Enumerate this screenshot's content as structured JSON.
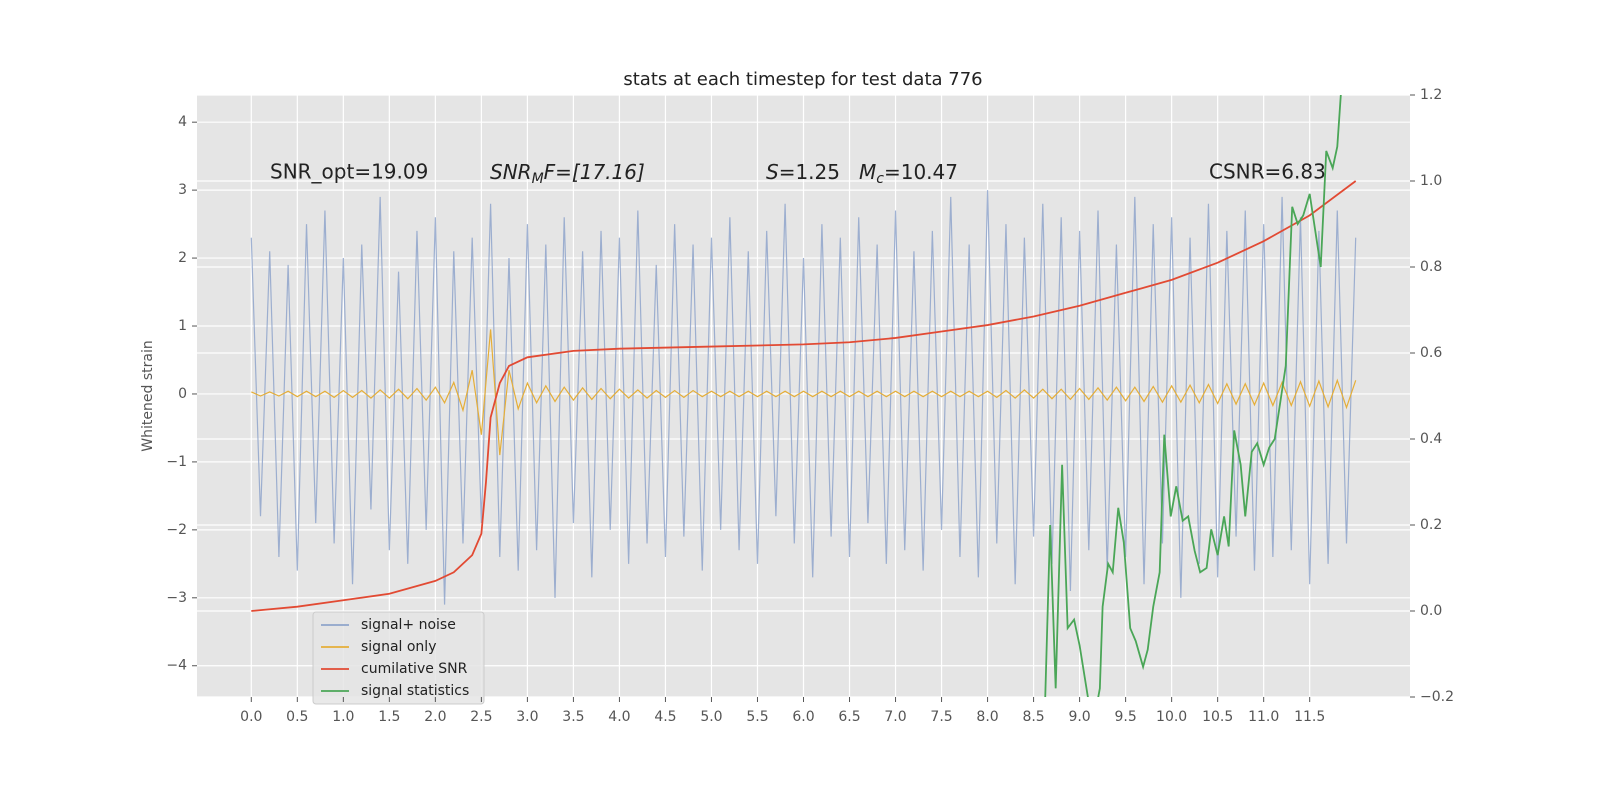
{
  "chart_data": {
    "type": "line",
    "title": "stats at each timestep for test data 776",
    "y_label": "Whitened strain",
    "grid": true,
    "legend": "lower left",
    "xlim": [
      -0.59,
      12.59
    ],
    "ylim": [
      -4.46,
      4.4
    ],
    "y2lim": [
      -0.2,
      1.2
    ],
    "xticks": [
      {
        "value": 0,
        "label": "0.0"
      },
      0.5,
      {
        "value": 1,
        "label": "1.0"
      },
      1.5,
      {
        "value": 2,
        "label": "2.0"
      },
      2.5,
      {
        "value": 3,
        "label": "3.0"
      },
      3.5,
      {
        "value": 4,
        "label": "4.0"
      },
      4.5,
      {
        "value": 5,
        "label": "5.0"
      },
      5.5,
      {
        "value": 6,
        "label": "6.0"
      },
      6.5,
      {
        "value": 7,
        "label": "7.0"
      },
      7.5,
      {
        "value": 8,
        "label": "8.0"
      },
      8.5,
      {
        "value": 9,
        "label": "9.0"
      },
      9.5,
      {
        "value": 10,
        "label": "10.0"
      },
      10.5,
      {
        "value": 11,
        "label": "11.0"
      },
      11.5
    ],
    "yticks": [
      {
        "value": -4,
        "label": "−4"
      },
      {
        "value": -3,
        "label": "−3"
      },
      {
        "value": -2,
        "label": "−2"
      },
      {
        "value": -1,
        "label": "−1"
      },
      0,
      1,
      2,
      3,
      4
    ],
    "y2ticks": [
      {
        "value": -0.2,
        "label": "−0.2"
      },
      {
        "value": 0,
        "label": "0.0"
      },
      0.2,
      0.4,
      0.6,
      0.8,
      {
        "value": 1,
        "label": "1.0"
      },
      1.2
    ],
    "annotations": [
      {
        "text": "SNR_opt=19.09"
      },
      {
        "base": "SNR",
        "sub": "M",
        "rest": "F=[17.16]"
      },
      {
        "base": "S",
        "rest": "=1.25"
      },
      {
        "base": "M",
        "sub": "c",
        "rest": "=10.47"
      },
      {
        "text": "CSNR=6.83"
      }
    ],
    "x": [
      0,
      0.1,
      0.2,
      0.3,
      0.4,
      0.5,
      0.6,
      0.7,
      0.8,
      0.9,
      1,
      1.1,
      1.2,
      1.3,
      1.4,
      1.5,
      1.6,
      1.7,
      1.8,
      1.9,
      2,
      2.1,
      2.2,
      2.3,
      2.4,
      2.5,
      2.6,
      2.7,
      2.8,
      2.9,
      3,
      3.1,
      3.2,
      3.3,
      3.4,
      3.5,
      3.6,
      3.7,
      3.8,
      3.9,
      4,
      4.1,
      4.2,
      4.3,
      4.4,
      4.5,
      4.6,
      4.7,
      4.8,
      4.9,
      5,
      5.1,
      5.2,
      5.3,
      5.4,
      5.5,
      5.6,
      5.7,
      5.8,
      5.9,
      6,
      6.1,
      6.2,
      6.3,
      6.4,
      6.5,
      6.6,
      6.7,
      6.8,
      6.9,
      7,
      7.1,
      7.2,
      7.3,
      7.4,
      7.5,
      7.6,
      7.7,
      7.8,
      7.9,
      8,
      8.1,
      8.2,
      8.3,
      8.4,
      8.5,
      8.6,
      8.7,
      8.8,
      8.9,
      9,
      9.1,
      9.2,
      9.3,
      9.4,
      9.5,
      9.6,
      9.7,
      9.8,
      9.9,
      10,
      10.1,
      10.2,
      10.3,
      10.4,
      10.5,
      10.6,
      10.7,
      10.8,
      10.9,
      11,
      11.1,
      11.2,
      11.3,
      11.4,
      11.5,
      11.6,
      11.7,
      11.8,
      11.9,
      12
    ],
    "series": [
      {
        "name": "signal+ noise",
        "color": "#8fa5cb",
        "values": [
          2.3,
          -1.8,
          2.1,
          -2.4,
          1.9,
          -2.6,
          2.5,
          -1.9,
          2.7,
          -2.2,
          2.0,
          -2.8,
          2.2,
          -1.7,
          2.9,
          -2.3,
          1.8,
          -2.5,
          2.4,
          -2.0,
          2.6,
          -3.1,
          2.1,
          -2.2,
          2.3,
          -1.9,
          2.8,
          -2.4,
          2.0,
          -2.6,
          2.5,
          -2.3,
          2.2,
          -3.0,
          2.6,
          -1.9,
          2.1,
          -2.7,
          2.4,
          -2.0,
          2.3,
          -2.5,
          2.7,
          -2.2,
          1.9,
          -2.4,
          2.5,
          -2.1,
          2.2,
          -2.6,
          2.3,
          -2.0,
          2.6,
          -2.3,
          2.1,
          -2.5,
          2.4,
          -1.8,
          2.8,
          -2.2,
          2.0,
          -2.7,
          2.5,
          -2.1,
          2.3,
          -2.4,
          2.6,
          -1.9,
          2.2,
          -2.5,
          2.7,
          -2.3,
          2.1,
          -2.6,
          2.4,
          -2.0,
          2.9,
          -2.4,
          2.2,
          -2.7,
          3.0,
          -2.2,
          2.5,
          -2.8,
          2.3,
          -2.1,
          2.8,
          -2.5,
          2.6,
          -2.9,
          2.4,
          -2.3,
          2.7,
          -2.6,
          2.2,
          -2.4,
          2.9,
          -2.8,
          2.5,
          -2.2,
          2.6,
          -3.0,
          2.3,
          -2.5,
          2.8,
          -2.7,
          2.4,
          -2.1,
          2.7,
          -2.6,
          2.5,
          -2.4,
          2.9,
          -2.3,
          2.6,
          -2.8,
          2.4,
          -2.5,
          2.7,
          -2.2,
          2.3
        ]
      },
      {
        "name": "signal only",
        "color": "#e5ae38",
        "values": [
          0.03,
          -0.03,
          0.03,
          -0.03,
          0.04,
          -0.04,
          0.04,
          -0.04,
          0.04,
          -0.05,
          0.05,
          -0.05,
          0.05,
          -0.06,
          0.06,
          -0.06,
          0.07,
          -0.07,
          0.08,
          -0.09,
          0.1,
          -0.13,
          0.17,
          -0.24,
          0.35,
          -0.6,
          0.95,
          -0.9,
          0.35,
          -0.22,
          0.16,
          -0.13,
          0.12,
          -0.11,
          0.1,
          -0.09,
          0.09,
          -0.08,
          0.08,
          -0.07,
          0.07,
          -0.06,
          0.06,
          -0.06,
          0.05,
          -0.05,
          0.05,
          -0.05,
          0.05,
          -0.04,
          0.04,
          -0.04,
          0.04,
          -0.04,
          0.04,
          -0.04,
          0.04,
          -0.04,
          0.04,
          -0.04,
          0.04,
          -0.04,
          0.04,
          -0.04,
          0.04,
          -0.04,
          0.04,
          -0.04,
          0.04,
          -0.04,
          0.04,
          -0.04,
          0.04,
          -0.04,
          0.04,
          -0.04,
          0.04,
          -0.04,
          0.04,
          -0.04,
          0.04,
          -0.05,
          0.05,
          -0.06,
          0.06,
          -0.06,
          0.07,
          -0.07,
          0.07,
          -0.08,
          0.08,
          -0.08,
          0.09,
          -0.09,
          0.1,
          -0.1,
          0.1,
          -0.11,
          0.11,
          -0.12,
          0.12,
          -0.12,
          0.13,
          -0.13,
          0.14,
          -0.14,
          0.15,
          -0.15,
          0.15,
          -0.16,
          0.16,
          -0.17,
          0.17,
          -0.17,
          0.18,
          -0.18,
          0.19,
          -0.19,
          0.2,
          -0.2,
          0.2
        ]
      },
      {
        "name": "cumilative SNR",
        "color": "#e24a33",
        "axis": "y2",
        "x": [
          0,
          0.5,
          1,
          1.5,
          2,
          2.2,
          2.4,
          2.5,
          2.55,
          2.6,
          2.7,
          2.8,
          3.0,
          3.5,
          4,
          5,
          6,
          6.5,
          7,
          7.5,
          8,
          8.5,
          9,
          9.5,
          10,
          10.5,
          11,
          11.5,
          12
        ],
        "values": [
          0,
          0.01,
          0.025,
          0.04,
          0.07,
          0.09,
          0.13,
          0.18,
          0.3,
          0.45,
          0.53,
          0.57,
          0.59,
          0.605,
          0.61,
          0.615,
          0.62,
          0.625,
          0.635,
          0.65,
          0.665,
          0.685,
          0.71,
          0.74,
          0.77,
          0.81,
          0.86,
          0.92,
          1.0
        ]
      },
      {
        "name": "signal statistics",
        "color": "#4aa657",
        "axis": "y2",
        "x": [
          8.62,
          8.68,
          8.74,
          8.81,
          8.87,
          8.94,
          9.0,
          9.09,
          9.16,
          9.22,
          9.25,
          9.31,
          9.36,
          9.42,
          9.48,
          9.55,
          9.61,
          9.69,
          9.74,
          9.8,
          9.87,
          9.92,
          9.99,
          10.05,
          10.12,
          10.18,
          10.25,
          10.31,
          10.38,
          10.43,
          10.5,
          10.57,
          10.62,
          10.68,
          10.75,
          10.8,
          10.87,
          10.93,
          11.0,
          11.06,
          11.12,
          11.24,
          11.31,
          11.37,
          11.43,
          11.5,
          11.62,
          11.68,
          11.75,
          11.8,
          11.87
        ],
        "values": [
          -0.25,
          0.2,
          -0.18,
          0.34,
          -0.04,
          -0.02,
          -0.08,
          -0.2,
          -0.25,
          -0.18,
          0.01,
          0.11,
          0.09,
          0.24,
          0.16,
          -0.04,
          -0.07,
          -0.13,
          -0.09,
          0.01,
          0.09,
          0.41,
          0.22,
          0.29,
          0.21,
          0.22,
          0.14,
          0.09,
          0.1,
          0.19,
          0.13,
          0.22,
          0.15,
          0.42,
          0.34,
          0.22,
          0.37,
          0.39,
          0.34,
          0.38,
          0.4,
          0.57,
          0.94,
          0.9,
          0.92,
          0.97,
          0.8,
          1.07,
          1.03,
          1.08,
          1.3
        ]
      }
    ]
  }
}
